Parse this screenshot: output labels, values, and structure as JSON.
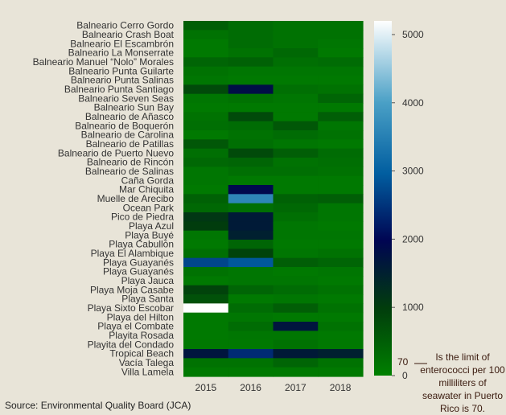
{
  "chart_data": {
    "type": "heatmap",
    "x": [
      "2015",
      "2016",
      "2017",
      "2018"
    ],
    "y": [
      "Balneario Cerro Gordo",
      "Balneario Crash Boat",
      "Balneario El Escambrón",
      "Balneario La Monserrate",
      "Balneario Manuel “Nolo” Morales",
      "Balneario Punta Guilarte",
      "Balneario Punta Salinas",
      "Balneario Punta Santiago",
      "Balneario Seven Seas",
      "Balneario Sun Bay",
      "Balneario de Añasco",
      "Balneario de Boquerón",
      "Balneario de Carolina",
      "Balneario de Patillas",
      "Balneario de Puerto Nuevo",
      "Balneario de Rincón",
      "Balneario de Salinas",
      "Caña Gorda",
      "Mar Chiquita",
      "Muelle de Arecibo",
      "Ocean Park",
      "Pico de Piedra",
      "Playa Azul",
      "Playa Buyé",
      "Playa Cabullón",
      "Playa El Alambique",
      "Playa Guayanés",
      "Playa Guayanés",
      "Playa Jauca",
      "Playa Moja Casabe",
      "Playa Santa",
      "Playa Sixto Escobar",
      "Playa del Hilton",
      "Playa el Combate",
      "Playita Rosada",
      "Playita del Condado",
      "Tropical Beach",
      "Vacía Talega",
      "Villa Lamela"
    ],
    "values": [
      [
        500,
        300,
        200,
        200
      ],
      [
        200,
        300,
        200,
        200
      ],
      [
        100,
        300,
        200,
        150
      ],
      [
        100,
        200,
        350,
        100
      ],
      [
        400,
        450,
        250,
        300
      ],
      [
        200,
        150,
        150,
        150
      ],
      [
        150,
        100,
        100,
        100
      ],
      [
        800,
        1800,
        250,
        200
      ],
      [
        150,
        200,
        150,
        400
      ],
      [
        100,
        100,
        100,
        100
      ],
      [
        200,
        800,
        100,
        500
      ],
      [
        250,
        300,
        600,
        150
      ],
      [
        100,
        200,
        300,
        200
      ],
      [
        600,
        250,
        150,
        100
      ],
      [
        250,
        800,
        500,
        300
      ],
      [
        350,
        400,
        200,
        250
      ],
      [
        150,
        250,
        250,
        200
      ],
      [
        150,
        100,
        100,
        100
      ],
      [
        100,
        1900,
        100,
        100
      ],
      [
        450,
        3600,
        450,
        500
      ],
      [
        350,
        250,
        350,
        150
      ],
      [
        1100,
        1600,
        250,
        150
      ],
      [
        1000,
        1600,
        150,
        100
      ],
      [
        150,
        1500,
        150,
        150
      ],
      [
        100,
        400,
        100,
        100
      ],
      [
        250,
        900,
        150,
        200
      ],
      [
        2700,
        2900,
        500,
        400
      ],
      [
        200,
        150,
        100,
        150
      ],
      [
        100,
        150,
        150,
        100
      ],
      [
        900,
        400,
        300,
        200
      ],
      [
        700,
        100,
        150,
        100
      ],
      [
        5200,
        300,
        500,
        200
      ],
      [
        100,
        150,
        100,
        100
      ],
      [
        100,
        300,
        1700,
        200
      ],
      [
        100,
        150,
        150,
        100
      ],
      [
        100,
        100,
        200,
        100
      ],
      [
        1700,
        2400,
        1600,
        1500
      ],
      [
        200,
        200,
        400,
        200
      ],
      [
        100,
        100,
        100,
        100
      ]
    ],
    "colorbar": {
      "min": 0,
      "max": 5200,
      "ticks": [
        0,
        1000,
        2000,
        3000,
        4000,
        5000
      ],
      "scale": "green-black-blue-white (ocean colormap)",
      "marker_value": 70,
      "marker_label": "70"
    },
    "note": "Is the limit of enterococci per 100 milliliters of seawater in Puerto Rico is 70.",
    "source": "Source:  Environmental Quality Board (JCA)",
    "xlabel": "",
    "ylabel": ""
  }
}
